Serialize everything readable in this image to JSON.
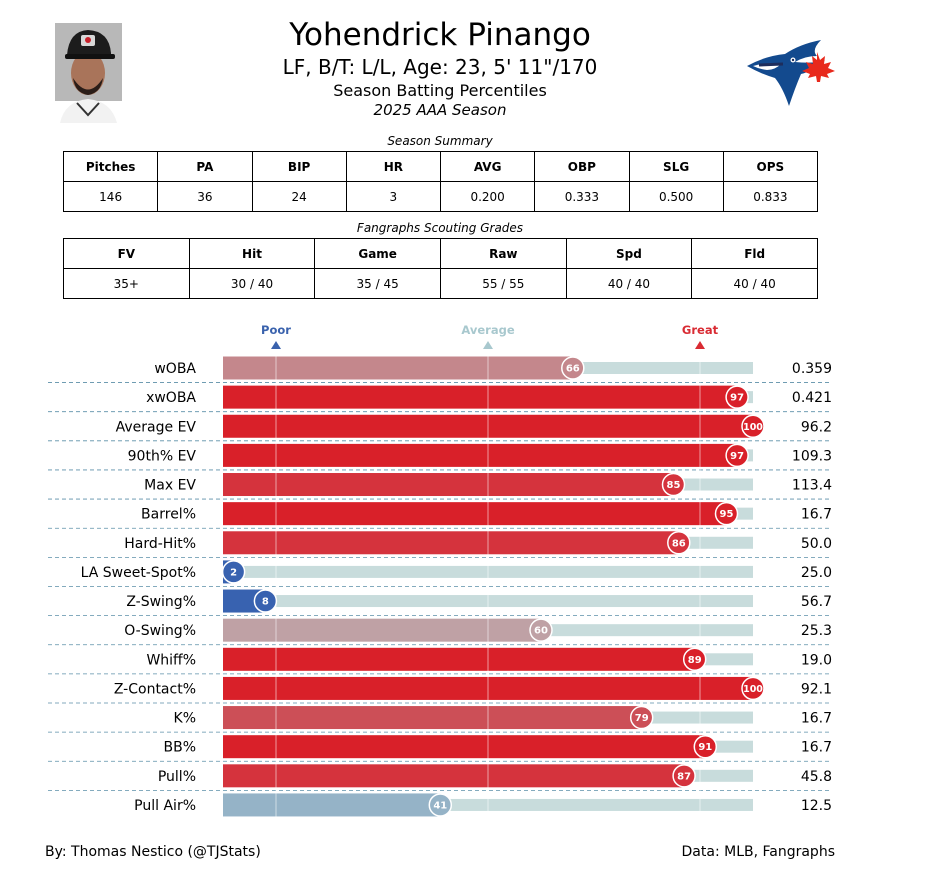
{
  "header": {
    "player_name": "Yohendrick Pinango",
    "bio": "LF, B/T: L/L, Age: 23, 5' 11\"/170",
    "subtitle": "Season Batting Percentiles",
    "season": "2025 AAA Season"
  },
  "summary": {
    "caption": "Season Summary",
    "headers": [
      "Pitches",
      "PA",
      "BIP",
      "HR",
      "AVG",
      "OBP",
      "SLG",
      "OPS"
    ],
    "values": [
      "146",
      "36",
      "24",
      "3",
      "0.200",
      "0.333",
      "0.500",
      "0.833"
    ]
  },
  "grades": {
    "caption": "Fangraphs Scouting Grades",
    "headers": [
      "FV",
      "Hit",
      "Game",
      "Raw",
      "Spd",
      "Fld"
    ],
    "values": [
      "35+",
      "30 / 40",
      "35 / 45",
      "55 / 55",
      "40 / 40",
      "40 / 40"
    ]
  },
  "chart_data": {
    "type": "bar",
    "orientation": "horizontal",
    "markers": [
      {
        "label": "Poor",
        "at": 10,
        "color": "#3a62ad"
      },
      {
        "label": "Average",
        "at": 50,
        "color": "#a8c8ce"
      },
      {
        "label": "Great",
        "at": 90,
        "color": "#d92b33"
      }
    ],
    "xlim": [
      0,
      100
    ],
    "categories": [
      "wOBA",
      "xwOBA",
      "Average EV",
      "90th% EV",
      "Max EV",
      "Barrel%",
      "Hard-Hit%",
      "LA Sweet-Spot%",
      "Z-Swing%",
      "O-Swing%",
      "Whiff%",
      "Z-Contact%",
      "K%",
      "BB%",
      "Pull%",
      "Pull Air%"
    ],
    "percentiles": [
      66,
      97,
      100,
      97,
      85,
      95,
      86,
      2,
      8,
      60,
      89,
      100,
      79,
      91,
      87,
      41
    ],
    "stat_values": [
      "0.359",
      "0.421",
      "96.2",
      "109.3",
      "113.4",
      "16.7",
      "50.0",
      "25.0",
      "56.7",
      "25.3",
      "19.0",
      "92.1",
      "16.7",
      "16.7",
      "45.8",
      "12.5"
    ],
    "colors": [
      "#c4878c",
      "#d92029",
      "#d92029",
      "#d92029",
      "#d5333d",
      "#d92029",
      "#d5333d",
      "#3862b0",
      "#3862b0",
      "#bfa1a5",
      "#d92029",
      "#d92029",
      "#cc4f57",
      "#d92029",
      "#d5333d",
      "#95b3c7"
    ],
    "track_color": "#c8dcdc",
    "grid": true
  },
  "footer": {
    "credit": "By: Thomas Nestico (@TJStats)",
    "source": "Data: MLB, Fangraphs"
  }
}
